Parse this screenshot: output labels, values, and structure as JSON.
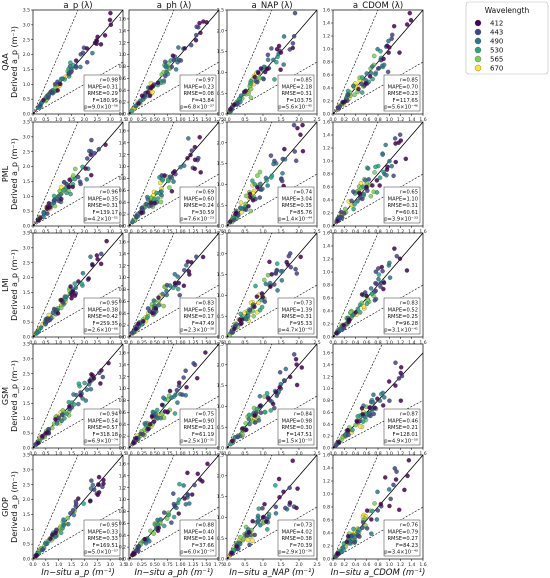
{
  "chart_data": {
    "type": "scatter",
    "columns": [
      {
        "title": "a_p (λ)",
        "xlabel": "In−situ a_p (m⁻¹)",
        "lim": [
          0,
          3.5
        ],
        "ticks": [
          "0.0",
          "0.5",
          "1.0",
          "1.5",
          "2.0",
          "2.5",
          "3.0",
          "3.5"
        ]
      },
      {
        "title": "a_ph (λ)",
        "xlabel": "In−situ a_ph (m⁻¹)",
        "lim": [
          0,
          1.75
        ],
        "ticks": [
          "0.0",
          "0.25",
          "0.50",
          "0.75",
          "1.00",
          "1.25",
          "1.50",
          "1.75"
        ]
      },
      {
        "title": "a_NAP (λ)",
        "xlabel": "In−situ a_NAP (m⁻¹)",
        "lim": [
          0,
          2.5
        ],
        "ticks": [
          "0.0",
          "0.5",
          "1.0",
          "1.5",
          "2.0",
          "2.5"
        ]
      },
      {
        "title": "a_CDOM (λ)",
        "xlabel": "In−situ a_CDOM (m⁻¹)",
        "lim": [
          0,
          1.6
        ],
        "ticks": [
          "0.0",
          "0.2",
          "0.4",
          "0.6",
          "0.8",
          "1.0",
          "1.2",
          "1.4",
          "1.6"
        ]
      }
    ],
    "rows": [
      {
        "model": "QAA",
        "ylabel": "Derived a_p (m⁻¹)",
        "stats": [
          [
            "r=0.98",
            "MAPE=0.31",
            "RMSE=0.29",
            "F=180.95",
            "p=9.0×10⁻⁵⁶"
          ],
          [
            "r=0.97",
            "MAPE=0.23",
            "RMSE=0.08",
            "F=43.84",
            "p=6.8×10⁻³⁷"
          ],
          [
            "r=0.85",
            "MAPE=2.18",
            "RMSE=0.31",
            "F=103.75",
            "p=5.6×10⁻⁴⁵"
          ],
          [
            "r=0.85",
            "MAPE=0.70",
            "RMSE=0.23",
            "F=117.65",
            "p=5.6×10⁻⁴⁶"
          ]
        ]
      },
      {
        "model": "PML",
        "ylabel": "Derived a_p (m⁻¹)",
        "stats": [
          [
            "r=0.96",
            "MAPE=0.35",
            "RMSE=0.31",
            "F=139.17",
            "p=4.2×10⁻⁵¹"
          ],
          [
            "r=0.69",
            "MAPE=0.60",
            "RMSE=0.24",
            "F=30.59",
            "p=7.6×10⁻²³"
          ],
          [
            "r=0.74",
            "MAPE=3.04",
            "RMSE=0.35",
            "F=85.76",
            "p=1.4×10⁻⁴⁴"
          ],
          [
            "r=0.65",
            "MAPE=1.10",
            "RMSE=0.31",
            "F=60.61",
            "p=3.9×10⁻³³"
          ]
        ]
      },
      {
        "model": "LMI",
        "ylabel": "Derived a_p (m⁻¹)",
        "stats": [
          [
            "r=0.95",
            "MAPE=0.38",
            "RMSE=0.42",
            "F=259.35",
            "p=2.6×10⁻⁶⁶"
          ],
          [
            "r=0.83",
            "MAPE=0.56",
            "RMSE=0.17",
            "F=47.49",
            "p=2.3×10⁻³⁸"
          ],
          [
            "r=0.73",
            "MAPE=1.39",
            "RMSE=0.31",
            "F=95.33",
            "p=4.7×10⁻⁴³"
          ],
          [
            "r=0.83",
            "MAPE=0.52",
            "RMSE=0.25",
            "F=96.28",
            "p=3.1×10⁻⁴¹"
          ]
        ]
      },
      {
        "model": "GSM",
        "ylabel": "Derived a_p (m⁻¹)",
        "stats": [
          [
            "r=0.94",
            "MAPE=0.54",
            "RMSE=0.57",
            "F=318.18",
            "p=6.9×10⁻⁷⁴"
          ],
          [
            "r=0.75",
            "MAPE=0.90",
            "RMSE=0.21",
            "F=61.19",
            "p=2.5×10⁻³¹"
          ],
          [
            "r=0.84",
            "MAPE=0.98",
            "RMSE=0.30",
            "F=147.51",
            "p=1.5×10⁻⁵³"
          ],
          [
            "r=0.87",
            "MAPE=0.46",
            "RMSE=0.21",
            "F=128.01",
            "p=4.9×10⁻⁵⁰"
          ]
        ]
      },
      {
        "model": "GIOP",
        "ylabel": "Derived a_p (m⁻¹)",
        "stats": [
          [
            "r=0.95",
            "MAPE=0.33",
            "RMSE=0.33",
            "F=169.51",
            "p=5.0×10⁻⁵⁷"
          ],
          [
            "r=0.88",
            "MAPE=0.40",
            "RMSE=0.14",
            "F=37.66",
            "p=6.0×10⁻²⁴"
          ],
          [
            "r=0.73",
            "MAPE=4.02",
            "RMSE=0.38",
            "F=70.39",
            "p=2.9×10⁻³⁶"
          ],
          [
            "r=0.76",
            "MAPE=0.79",
            "RMSE=0.27",
            "F=84.23",
            "p=3.4×10⁻⁴⁰"
          ]
        ]
      }
    ],
    "row_ylims": [
      [
        [
          0,
          3.5
        ],
        [
          0,
          1.75
        ],
        [
          0,
          2.5
        ],
        [
          0,
          1.6
        ]
      ],
      [
        [
          0,
          3.5
        ],
        [
          0,
          1.75
        ],
        [
          0,
          2.5
        ],
        [
          0,
          1.6
        ]
      ],
      [
        [
          0,
          3.5
        ],
        [
          0,
          1.75
        ],
        [
          0,
          2.5
        ],
        [
          0,
          1.6
        ]
      ],
      [
        [
          0,
          3.5
        ],
        [
          0,
          1.75
        ],
        [
          0,
          2.5
        ],
        [
          0,
          1.75
        ]
      ],
      [
        [
          0,
          3.5
        ],
        [
          0,
          1.75
        ],
        [
          0,
          2.5
        ],
        [
          0,
          1.6
        ]
      ]
    ],
    "legend": {
      "title": "Wavelength",
      "placement": "right",
      "entries": [
        {
          "label": "412",
          "color": "#440154"
        },
        {
          "label": "443",
          "color": "#414487"
        },
        {
          "label": "490",
          "color": "#2a788e"
        },
        {
          "label": "530",
          "color": "#22a884"
        },
        {
          "label": "565",
          "color": "#7ad151"
        },
        {
          "label": "670",
          "color": "#fde725"
        }
      ]
    },
    "reference_lines": {
      "one_to_one": "solid",
      "factor_two": "dashed"
    }
  }
}
